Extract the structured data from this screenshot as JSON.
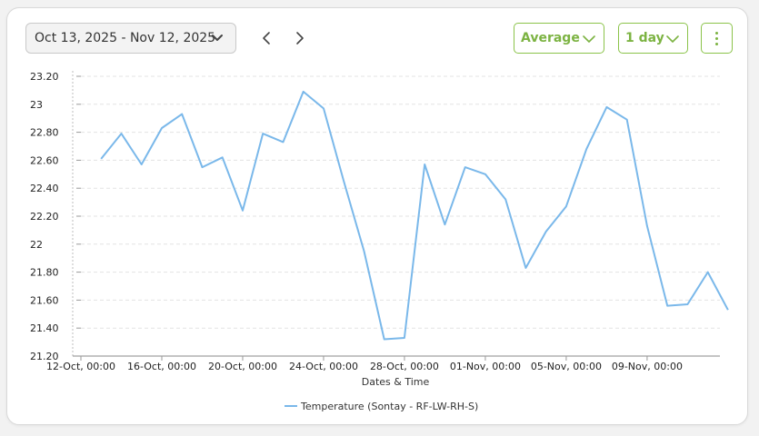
{
  "toolbar": {
    "date_range": "Oct 13, 2025 - Nov 12, 2025",
    "aggregation": "Average",
    "interval": "1 day",
    "accent": "#7cb342"
  },
  "chart_data": {
    "type": "line",
    "xlabel": "Dates & Time",
    "ylabel": "",
    "ylim": [
      21.2,
      23.2
    ],
    "yticks": [
      "23.20",
      "23",
      "22.80",
      "22.60",
      "22.40",
      "22.20",
      "22",
      "21.80",
      "21.60",
      "21.40",
      "21.20"
    ],
    "x_ticks": [
      {
        "label": "12-Oct, 00:00",
        "day": 0
      },
      {
        "label": "16-Oct, 00:00",
        "day": 4
      },
      {
        "label": "20-Oct, 00:00",
        "day": 8
      },
      {
        "label": "24-Oct, 00:00",
        "day": 12
      },
      {
        "label": "28-Oct, 00:00",
        "day": 16
      },
      {
        "label": "01-Nov, 00:00",
        "day": 20
      },
      {
        "label": "05-Nov, 00:00",
        "day": 24
      },
      {
        "label": "09-Nov, 00:00",
        "day": 28
      }
    ],
    "xlim": [
      0,
      31
    ],
    "grid": "horizontal",
    "legend": "bottom-center",
    "series": [
      {
        "name": "Temperature (Sontay - RF-LW-RH-S)",
        "color": "#7ab8ea",
        "points": [
          {
            "date": "13-Oct",
            "value": 22.61
          },
          {
            "date": "14-Oct",
            "value": 22.79
          },
          {
            "date": "15-Oct",
            "value": 22.57
          },
          {
            "date": "16-Oct",
            "value": 22.83
          },
          {
            "date": "17-Oct",
            "value": 22.93
          },
          {
            "date": "18-Oct",
            "value": 22.55
          },
          {
            "date": "19-Oct",
            "value": 22.62
          },
          {
            "date": "20-Oct",
            "value": 22.24
          },
          {
            "date": "21-Oct",
            "value": 22.79
          },
          {
            "date": "22-Oct",
            "value": 22.73
          },
          {
            "date": "23-Oct",
            "value": 23.09
          },
          {
            "date": "24-Oct",
            "value": 22.97
          },
          {
            "date": "25-Oct",
            "value": 22.45
          },
          {
            "date": "26-Oct",
            "value": 21.95
          },
          {
            "date": "27-Oct",
            "value": 21.32
          },
          {
            "date": "28-Oct",
            "value": 21.33
          },
          {
            "date": "29-Oct",
            "value": 22.57
          },
          {
            "date": "30-Oct",
            "value": 22.14
          },
          {
            "date": "31-Oct",
            "value": 22.55
          },
          {
            "date": "01-Nov",
            "value": 22.5
          },
          {
            "date": "02-Nov",
            "value": 22.32
          },
          {
            "date": "03-Nov",
            "value": 21.83
          },
          {
            "date": "04-Nov",
            "value": 22.09
          },
          {
            "date": "05-Nov",
            "value": 22.27
          },
          {
            "date": "06-Nov",
            "value": 22.68
          },
          {
            "date": "07-Nov",
            "value": 22.98
          },
          {
            "date": "08-Nov",
            "value": 22.89
          },
          {
            "date": "09-Nov",
            "value": 22.13
          },
          {
            "date": "10-Nov",
            "value": 21.56
          },
          {
            "date": "11-Nov",
            "value": 21.57
          },
          {
            "date": "12-Nov",
            "value": 21.8
          },
          {
            "date": "13-Nov",
            "value": 21.53
          }
        ]
      }
    ]
  }
}
